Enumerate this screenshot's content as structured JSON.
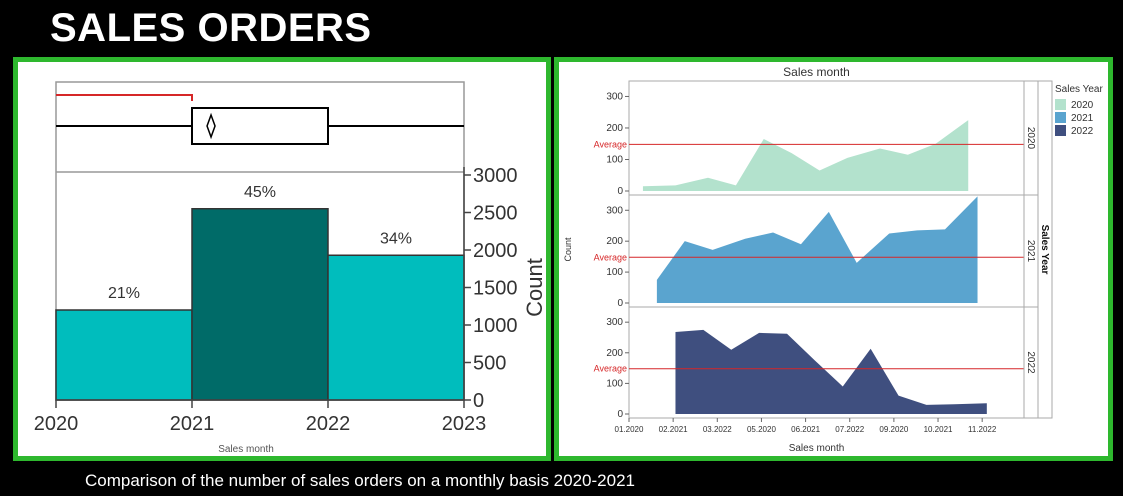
{
  "header": {
    "title": "SALES ORDERS"
  },
  "caption": "Comparison of the number of sales orders on a monthly basis 2020-2021",
  "colors": {
    "bar_light": "#00bdbd",
    "bar_dark": "#006b68",
    "area_2020": "#b3e2cd",
    "area_2021": "#5aa4cf",
    "area_2022": "#3f4f7f",
    "average_line": "#d62728",
    "panel_border": "#2eb82e"
  },
  "chart_data": [
    {
      "type": "bar",
      "x_ticks": [
        "2020",
        "2021",
        "2022",
        "2023"
      ],
      "bins": [
        {
          "from": "2020",
          "to": "2021",
          "value": 1200,
          "label": "21%"
        },
        {
          "from": "2021",
          "to": "2022",
          "value": 2550,
          "label": "45%"
        },
        {
          "from": "2022",
          "to": "2023",
          "value": 1930,
          "label": "34%"
        }
      ],
      "ylabel": "Count",
      "xlabel": "Sales month",
      "ylim": [
        0,
        3000
      ],
      "y_ticks": [
        "0",
        "500",
        "1000",
        "1500",
        "2000",
        "2500",
        "3000"
      ],
      "boxplot": {
        "box_from": "2021",
        "box_to": "2022",
        "whisker_min": "2020",
        "whisker_max": "2023",
        "mean": "2021.14",
        "range_bar_to": "2021"
      }
    },
    {
      "type": "area",
      "title": "Sales month",
      "xlabel": "Sales month",
      "ylabel": "Count",
      "legend_title": "Sales Year",
      "legend_position": "top-right",
      "facet_label": "Sales Year",
      "average_label": "Average",
      "average_value": 148,
      "ylim": [
        0,
        330
      ],
      "y_ticks": [
        "0",
        "100",
        "200",
        "300"
      ],
      "x_ticks": [
        "01.2020",
        "02.2021",
        "03.2022",
        "05.2020",
        "06.2021",
        "07.2022",
        "09.2020",
        "10.2021",
        "11.2022"
      ],
      "series": [
        {
          "name": "2020",
          "x": [
            0.3,
            1.0,
            1.7,
            2.3,
            2.9,
            3.5,
            4.1,
            4.7,
            5.4,
            6.0,
            6.6,
            7.3
          ],
          "values": [
            15,
            18,
            42,
            18,
            165,
            120,
            65,
            105,
            135,
            115,
            150,
            225
          ]
        },
        {
          "name": "2021",
          "x": [
            0.6,
            1.2,
            1.8,
            2.5,
            3.1,
            3.7,
            4.3,
            4.9,
            5.6,
            6.2,
            6.8,
            7.5
          ],
          "values": [
            75,
            200,
            172,
            208,
            228,
            190,
            295,
            130,
            225,
            235,
            238,
            345
          ]
        },
        {
          "name": "2022",
          "x": [
            1.0,
            1.6,
            2.2,
            2.8,
            3.4,
            4.0,
            4.6,
            5.2,
            5.8,
            6.4,
            7.0,
            7.7
          ],
          "values": [
            268,
            275,
            210,
            265,
            262,
            175,
            90,
            213,
            60,
            30,
            32,
            35
          ]
        }
      ]
    }
  ]
}
